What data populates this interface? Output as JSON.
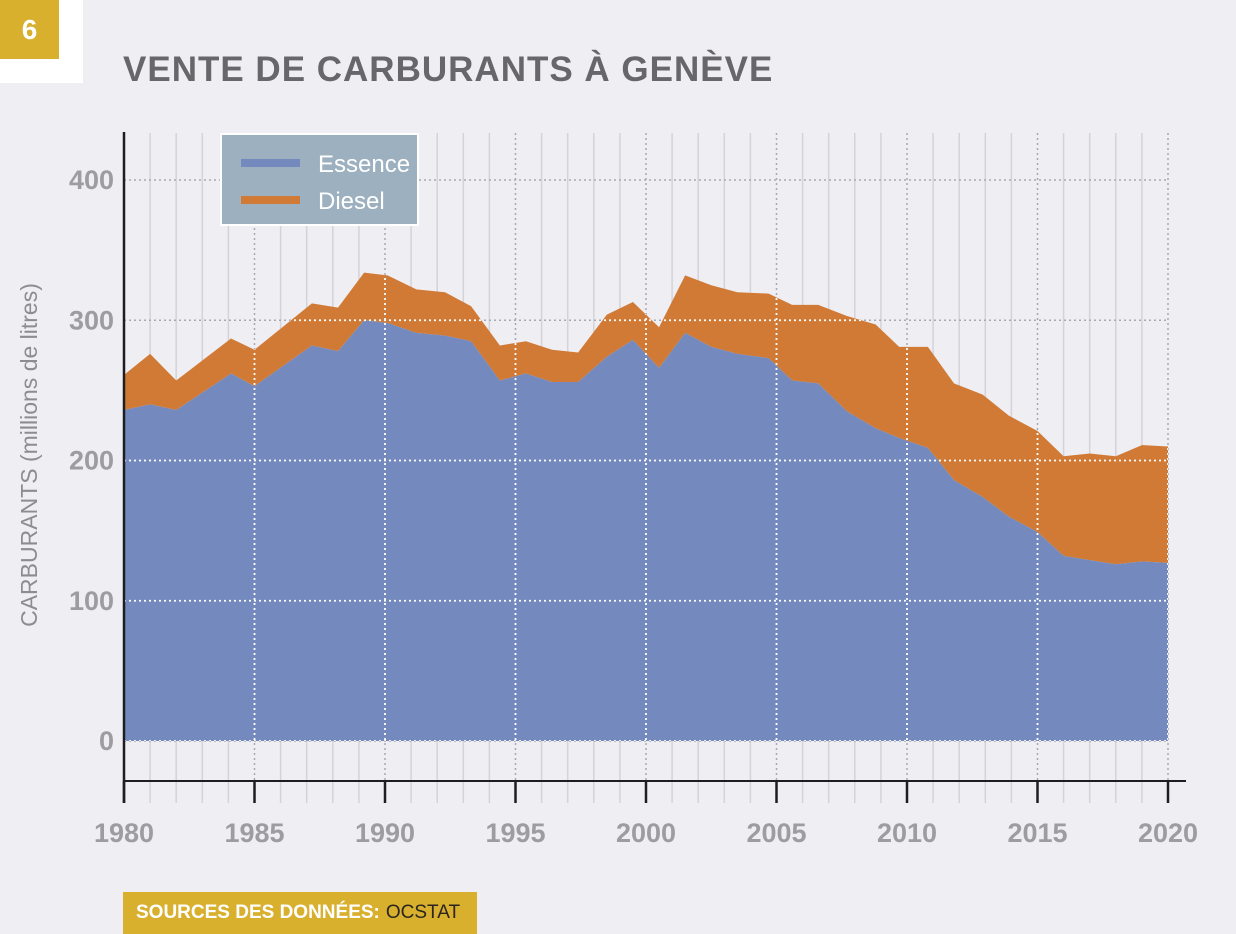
{
  "badge": "6",
  "title": "VENTE DE CARBURANTS À GENÈVE",
  "source": {
    "label": "SOURCES DES DONNÉES:",
    "value": "OCSTAT"
  },
  "colors": {
    "essence": "#7489bd",
    "diesel": "#d07a35",
    "legend_bg": "#9cb0c0",
    "badge": "#d8b02e"
  },
  "chart_data": {
    "type": "area",
    "stacked": true,
    "title": "VENTE DE CARBURANTS À GENÈVE",
    "xlabel": "",
    "ylabel": "CARBURANTS (millions de litres)",
    "xlim": [
      1980,
      2020
    ],
    "ylim": [
      0,
      400
    ],
    "xticks": [
      "1980",
      "1985",
      "1990",
      "1995",
      "2000",
      "2005",
      "2010",
      "2015",
      "2020"
    ],
    "yticks": [
      "0",
      "100",
      "200",
      "300",
      "400"
    ],
    "grid": true,
    "legend_position": "top-left",
    "x": [
      1980,
      1981,
      1982,
      1984.1,
      1985,
      1987.2,
      1988.2,
      1989.2,
      1990.1,
      1991.2,
      1992.3,
      1993.3,
      1994.4,
      1995.4,
      1996.4,
      1997.4,
      1998.5,
      1999.5,
      2000.5,
      2001.5,
      2002.5,
      2003.5,
      2004.7,
      2005.6,
      2006.6,
      2007.7,
      2008.8,
      2009.7,
      2010.8,
      2011.8,
      2012.9,
      2013.9,
      2015,
      2016,
      2017,
      2018,
      2019,
      2020
    ],
    "series": [
      {
        "name": "Essence",
        "values": [
          236,
          240,
          236,
          262,
          253,
          282,
          278,
          300,
          298,
          291,
          289,
          285,
          257,
          262,
          256,
          256,
          274,
          286,
          266,
          291,
          281,
          276,
          273,
          257,
          255,
          235,
          223,
          216,
          209,
          186,
          174,
          160,
          149,
          132,
          129,
          126,
          128,
          127
        ]
      },
      {
        "name": "Diesel",
        "values": [
          25,
          36,
          21,
          25,
          26,
          30,
          31,
          34,
          34,
          31,
          31,
          25,
          25,
          23,
          23,
          21,
          30,
          27,
          29,
          41,
          44,
          44,
          46,
          54,
          56,
          68,
          74,
          65,
          72,
          69,
          73,
          72,
          72,
          71,
          76,
          77,
          83,
          83
        ]
      }
    ]
  }
}
